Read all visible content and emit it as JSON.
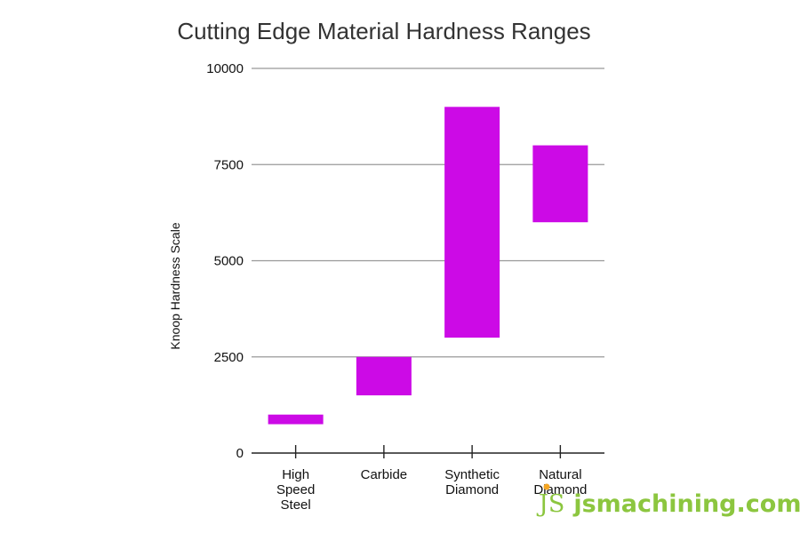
{
  "chart_data": {
    "type": "floating-bar",
    "title": "Cutting Edge Material Hardness Ranges",
    "ylabel": "Knoop Hardness Scale",
    "xlabel": "",
    "ylim": [
      0,
      10000
    ],
    "yticks": [
      0,
      2500,
      5000,
      7500,
      10000
    ],
    "grid": true,
    "categories": [
      [
        "High",
        "Speed",
        "Steel"
      ],
      [
        "Carbide"
      ],
      [
        "Synthetic",
        "Diamond"
      ],
      [
        "Natural",
        "Diamond"
      ]
    ],
    "ranges": [
      [
        750,
        1000
      ],
      [
        1500,
        2500
      ],
      [
        3000,
        9000
      ],
      [
        6000,
        8000
      ]
    ],
    "bar_color": "#cc0ae6",
    "grid_color": "#999999"
  },
  "watermark": {
    "logo": "JS",
    "text": "jsmachining.com",
    "color": "#8cc63f",
    "dot_color": "#f5a623"
  }
}
